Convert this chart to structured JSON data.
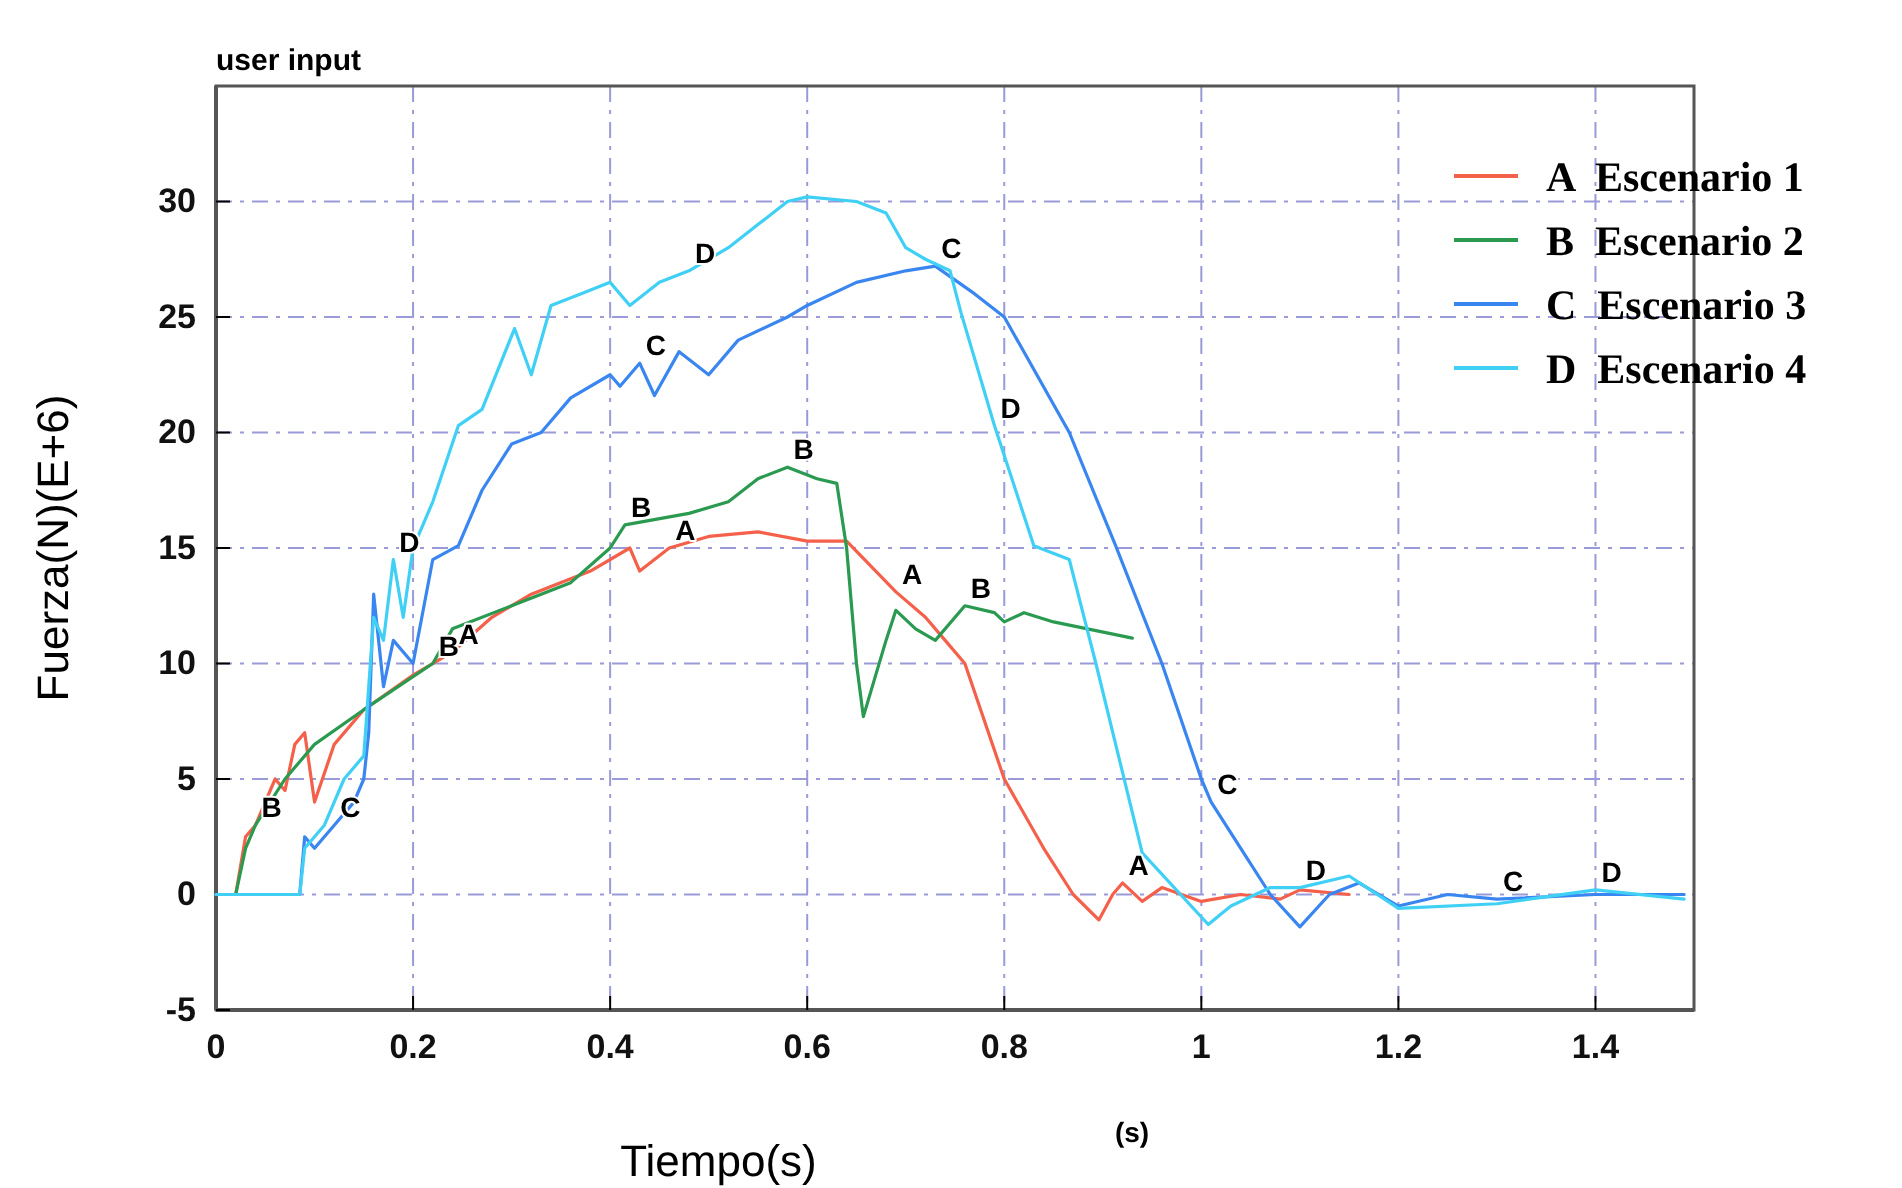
{
  "chart_data": {
    "type": "line",
    "title": "user input",
    "xlabel": "Tiempo(s)",
    "ylabel": "Fuerza(N)(E+6)",
    "xlim": [
      0,
      1.5
    ],
    "xticks": [
      0,
      0.2,
      0.4,
      0.6,
      0.8,
      1,
      1.2,
      1.4
    ],
    "ylim": [
      -5,
      35
    ],
    "yticks": [
      -5,
      0,
      5,
      10,
      15,
      20,
      25,
      30
    ],
    "grid": true,
    "legend": "top right",
    "line_style": "solid",
    "marker": "none",
    "series": [
      {
        "name": "A  Escenario 1",
        "color": "#f5604a",
        "x": [
          0,
          0.02,
          0.03,
          0.04,
          0.05,
          0.06,
          0.07,
          0.08,
          0.09,
          0.1,
          0.12,
          0.15,
          0.2,
          0.24,
          0.28,
          0.32,
          0.38,
          0.42,
          0.43,
          0.46,
          0.5,
          0.55,
          0.6,
          0.64,
          0.69,
          0.72,
          0.74,
          0.76,
          0.8,
          0.84,
          0.87,
          0.896,
          0.91,
          0.92,
          0.94,
          0.96,
          1.0,
          1.04,
          1.08,
          1.1,
          1.15
        ],
        "values": [
          0,
          0,
          2.5,
          3,
          4,
          5,
          4.5,
          6.5,
          7,
          4,
          6.5,
          8,
          9.5,
          10.5,
          12,
          13,
          14,
          15,
          14,
          15,
          15.5,
          15.7,
          15.3,
          15.3,
          13.1,
          12,
          11,
          10,
          5,
          2,
          0,
          -1.1,
          0,
          0.5,
          -0.3,
          0.3,
          -0.3,
          0,
          -0.2,
          0.2,
          0
        ]
      },
      {
        "name": "B  Escenario 2",
        "color": "#2a9a50",
        "x": [
          0,
          0.02,
          0.03,
          0.04,
          0.07,
          0.1,
          0.15,
          0.22,
          0.24,
          0.3,
          0.36,
          0.4,
          0.415,
          0.48,
          0.52,
          0.55,
          0.58,
          0.61,
          0.63,
          0.64,
          0.65,
          0.657,
          0.68,
          0.69,
          0.71,
          0.73,
          0.76,
          0.79,
          0.8,
          0.82,
          0.85,
          0.93
        ],
        "values": [
          0,
          0,
          2,
          3,
          5,
          6.5,
          8,
          10,
          11.5,
          12.5,
          13.5,
          15,
          16,
          16.5,
          17,
          18,
          18.5,
          18,
          17.8,
          15,
          10,
          7.7,
          11,
          12.3,
          11.5,
          11,
          12.5,
          12.2,
          11.8,
          12.2,
          11.8,
          11.1
        ]
      },
      {
        "name": "C  Escenario 3",
        "color": "#3a86f0",
        "x": [
          0,
          0.085,
          0.09,
          0.1,
          0.12,
          0.14,
          0.15,
          0.155,
          0.16,
          0.17,
          0.18,
          0.2,
          0.22,
          0.246,
          0.27,
          0.3,
          0.33,
          0.36,
          0.4,
          0.41,
          0.43,
          0.445,
          0.47,
          0.5,
          0.53,
          0.58,
          0.6,
          0.65,
          0.7,
          0.73,
          0.77,
          0.8,
          0.866,
          0.913,
          0.96,
          1.0,
          1.01,
          1.04,
          1.07,
          1.1,
          1.13,
          1.16,
          1.2,
          1.25,
          1.3,
          1.4,
          1.49
        ],
        "values": [
          0,
          0,
          2.5,
          2,
          3,
          4,
          5,
          7,
          13,
          9,
          11,
          10,
          14.5,
          15.1,
          17.5,
          19.5,
          20,
          21.5,
          22.5,
          22,
          23,
          21.6,
          23.5,
          22.5,
          24,
          25,
          25.5,
          26.5,
          27,
          27.2,
          26,
          25,
          20,
          15.1,
          10,
          5,
          4,
          2,
          0,
          -1.4,
          0,
          0.5,
          -0.5,
          0,
          -0.2,
          0,
          0
        ]
      },
      {
        "name": "D  Escenario 4",
        "color": "#40d0f5",
        "x": [
          0,
          0.085,
          0.09,
          0.11,
          0.13,
          0.15,
          0.16,
          0.17,
          0.18,
          0.19,
          0.2,
          0.22,
          0.246,
          0.27,
          0.303,
          0.32,
          0.34,
          0.37,
          0.4,
          0.42,
          0.45,
          0.48,
          0.52,
          0.55,
          0.58,
          0.6,
          0.65,
          0.68,
          0.7,
          0.72,
          0.745,
          0.756,
          0.79,
          0.83,
          0.866,
          0.893,
          0.94,
          1.007,
          1.03,
          1.07,
          1.1,
          1.15,
          1.2,
          1.3,
          1.4,
          1.49
        ],
        "values": [
          0,
          0,
          2,
          3,
          5,
          6,
          12,
          11,
          14.5,
          12,
          15,
          17,
          20.3,
          21,
          24.5,
          22.5,
          25.5,
          26,
          26.5,
          25.5,
          26.5,
          27,
          28,
          29,
          30,
          30.2,
          30,
          29.5,
          28,
          27.5,
          27,
          25.2,
          20.3,
          15.1,
          14.5,
          10,
          1.8,
          -1.3,
          -0.5,
          0.3,
          0.3,
          0.8,
          -0.6,
          -0.4,
          0.2,
          -0.2
        ]
      }
    ],
    "annotations": [
      {
        "text": "A",
        "x": 0.46,
        "y": 15
      },
      {
        "text": "A",
        "x": 0.69,
        "y": 13.1
      },
      {
        "text": "A",
        "x": 0.24,
        "y": 10.5
      },
      {
        "text": "A",
        "x": 0.92,
        "y": 0.5
      },
      {
        "text": "B",
        "x": 0.04,
        "y": 3
      },
      {
        "text": "B",
        "x": 0.22,
        "y": 10
      },
      {
        "text": "B",
        "x": 0.415,
        "y": 16
      },
      {
        "text": "B",
        "x": 0.58,
        "y": 18.5
      },
      {
        "text": "B",
        "x": 0.76,
        "y": 12.5
      },
      {
        "text": "C",
        "x": 0.12,
        "y": 3
      },
      {
        "text": "C",
        "x": 0.43,
        "y": 23
      },
      {
        "text": "C",
        "x": 0.73,
        "y": 27.2
      },
      {
        "text": "C",
        "x": 1.01,
        "y": 4
      },
      {
        "text": "C",
        "x": 1.3,
        "y": -0.2
      },
      {
        "text": "D",
        "x": 0.18,
        "y": 14.5
      },
      {
        "text": "D",
        "x": 0.48,
        "y": 27
      },
      {
        "text": "D",
        "x": 0.79,
        "y": 20.3
      },
      {
        "text": "D",
        "x": 1.1,
        "y": 0.3
      },
      {
        "text": "D",
        "x": 1.4,
        "y": 0.2
      },
      "(s)"
    ]
  }
}
